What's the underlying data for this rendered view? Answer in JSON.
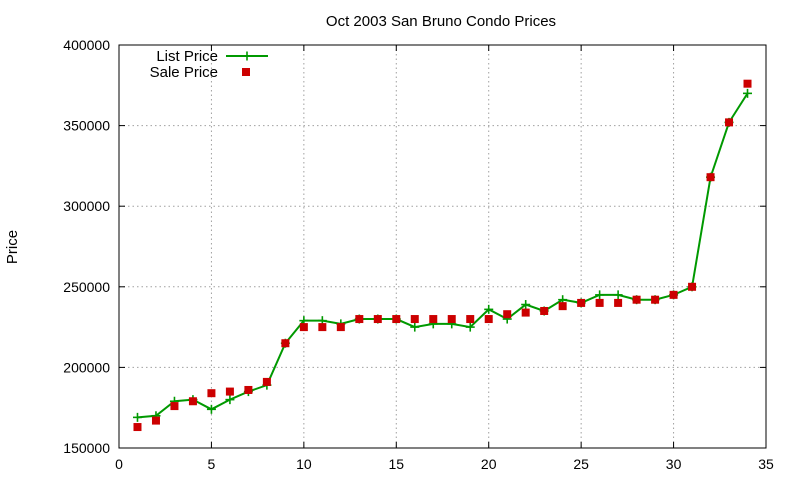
{
  "chart_data": {
    "type": "scatter",
    "title": "Oct 2003 San Bruno Condo Prices",
    "xlabel": "",
    "ylabel": "Price",
    "xlim": [
      0,
      35
    ],
    "ylim": [
      150000,
      400000
    ],
    "xticks": [
      "0",
      "5",
      "10",
      "15",
      "20",
      "25",
      "30",
      "35"
    ],
    "yticks": [
      "150000",
      "200000",
      "250000",
      "300000",
      "350000",
      "400000"
    ],
    "grid": true,
    "legend_position": "top-left",
    "x": [
      1,
      2,
      3,
      4,
      5,
      6,
      7,
      8,
      9,
      10,
      11,
      12,
      13,
      14,
      15,
      16,
      17,
      18,
      19,
      20,
      21,
      22,
      23,
      24,
      25,
      26,
      27,
      28,
      29,
      30,
      31,
      32,
      33,
      34
    ],
    "series": [
      {
        "name": "List Price",
        "style": "line-plus",
        "color": "#009900",
        "values": [
          169000,
          170000,
          179000,
          180000,
          174000,
          180000,
          185000,
          189000,
          215000,
          229000,
          229000,
          227000,
          230000,
          230000,
          230000,
          225000,
          227000,
          227000,
          225000,
          236000,
          230000,
          239000,
          235000,
          242000,
          240000,
          245000,
          245000,
          242000,
          242000,
          245000,
          250000,
          318000,
          352000,
          370000
        ]
      },
      {
        "name": "Sale Price",
        "style": "square",
        "color": "#cc0000",
        "values": [
          163000,
          167000,
          176000,
          179000,
          184000,
          185000,
          186000,
          191000,
          215000,
          225000,
          225000,
          225000,
          230000,
          230000,
          230000,
          230000,
          230000,
          230000,
          230000,
          230000,
          233000,
          234000,
          235000,
          238000,
          240000,
          240000,
          240000,
          242000,
          242000,
          245000,
          250000,
          318000,
          352000,
          376000
        ]
      }
    ]
  }
}
